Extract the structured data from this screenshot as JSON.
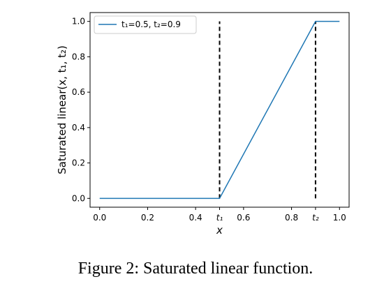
{
  "caption": "Figure 2: Saturated linear function.",
  "chart_data": {
    "type": "line",
    "title": "",
    "xlabel": "x",
    "ylabel": "Saturated linear(x, t₁, t₂)",
    "xlim": [
      -0.04,
      1.04
    ],
    "ylim": [
      -0.05,
      1.05
    ],
    "grid": false,
    "legend_position": "top-left",
    "x_ticks": [
      {
        "value": 0.0,
        "label": "0.0",
        "italic": false
      },
      {
        "value": 0.2,
        "label": "0.2",
        "italic": false
      },
      {
        "value": 0.4,
        "label": "0.4",
        "italic": false
      },
      {
        "value": 0.5,
        "label": "t₁",
        "italic": true
      },
      {
        "value": 0.6,
        "label": "0.6",
        "italic": false
      },
      {
        "value": 0.8,
        "label": "0.8",
        "italic": false
      },
      {
        "value": 0.9,
        "label": "t₂",
        "italic": true
      },
      {
        "value": 1.0,
        "label": "1.0",
        "italic": false
      }
    ],
    "y_ticks": [
      {
        "value": 0.0,
        "label": "0.0"
      },
      {
        "value": 0.2,
        "label": "0.2"
      },
      {
        "value": 0.4,
        "label": "0.4"
      },
      {
        "value": 0.6,
        "label": "0.6"
      },
      {
        "value": 0.8,
        "label": "0.8"
      },
      {
        "value": 1.0,
        "label": "1.0"
      }
    ],
    "series": [
      {
        "name": "t₁=0.5, t₂=0.9",
        "color": "#1f77b4",
        "x": [
          0.0,
          0.5,
          0.9,
          1.0
        ],
        "y": [
          0.0,
          0.0,
          1.0,
          1.0
        ]
      }
    ],
    "vlines": [
      {
        "x": 0.5,
        "y": [
          0.0,
          1.0
        ],
        "style": "dashed",
        "color": "#000000"
      },
      {
        "x": 0.9,
        "y": [
          0.0,
          1.0
        ],
        "style": "dashed",
        "color": "#000000"
      }
    ]
  }
}
